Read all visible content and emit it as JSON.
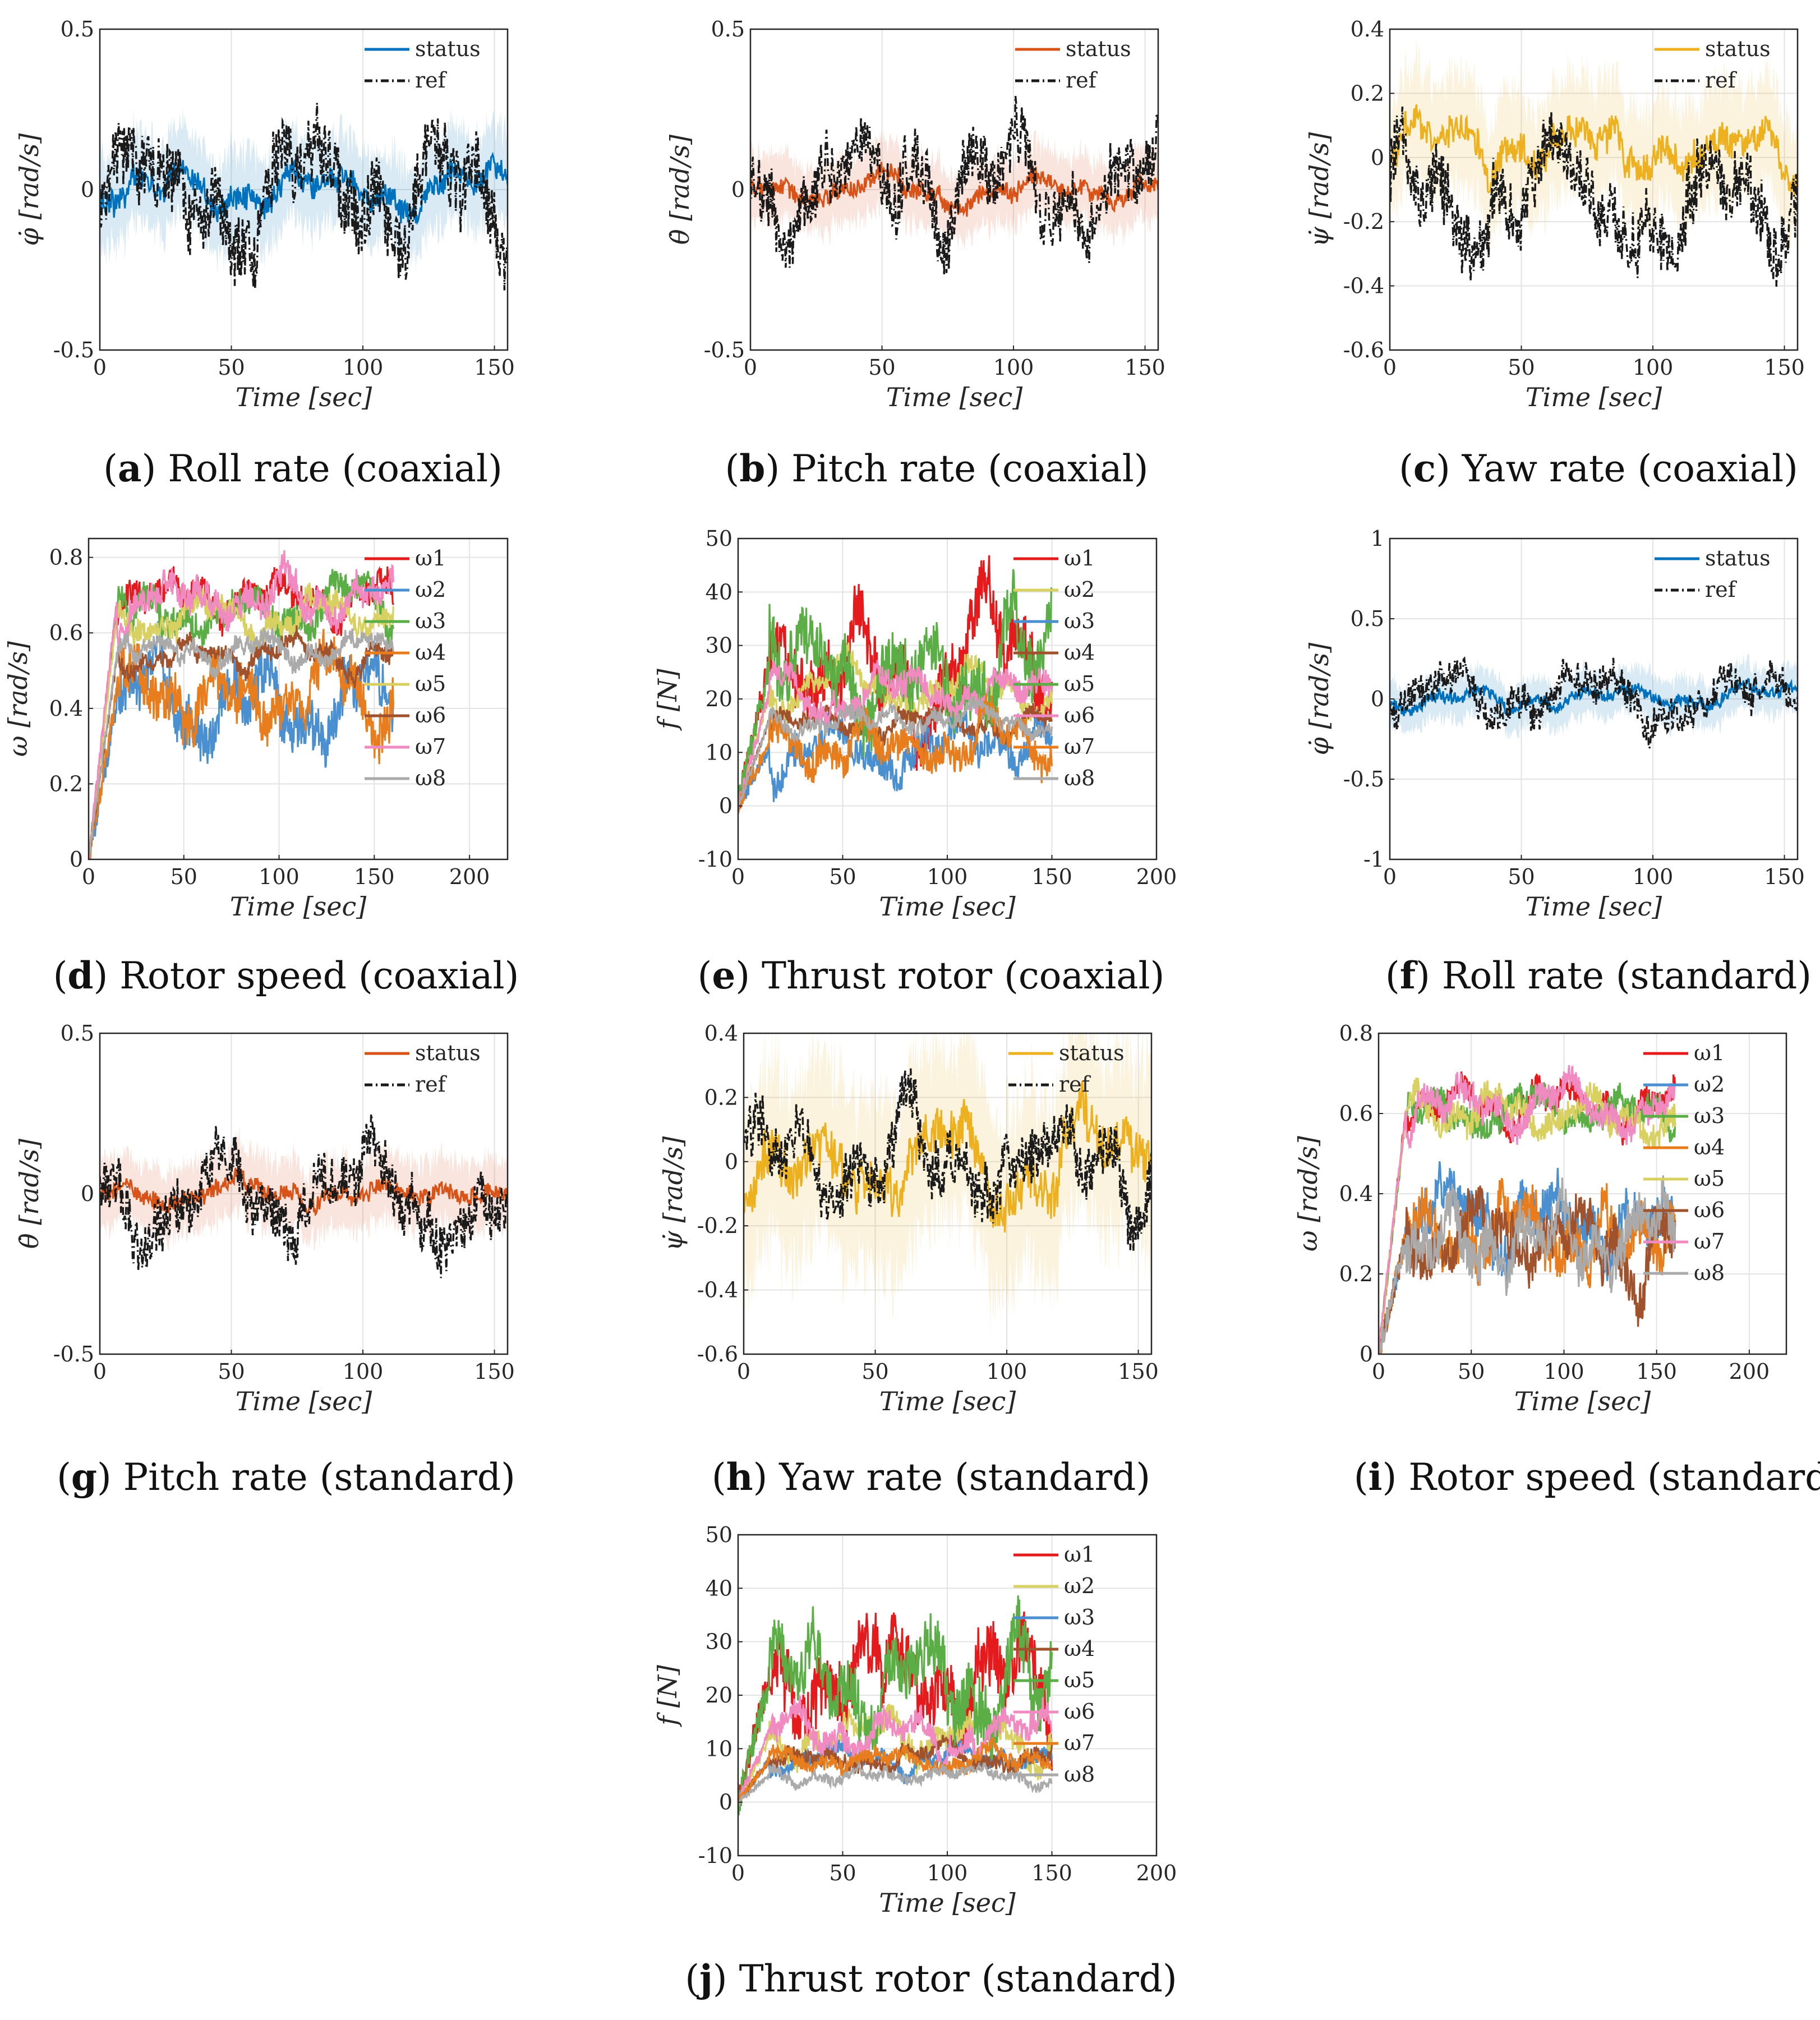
{
  "figure": {
    "captions": [
      {
        "letter": "a",
        "text": "Roll rate (coaxial)"
      },
      {
        "letter": "b",
        "text": "Pitch rate (coaxial)"
      },
      {
        "letter": "c",
        "text": "Yaw rate (coaxial)"
      },
      {
        "letter": "d",
        "text": "Rotor speed (coaxial)"
      },
      {
        "letter": "e",
        "text": "Thrust rotor (coaxial)"
      },
      {
        "letter": "f",
        "text": "Roll rate (standard)"
      },
      {
        "letter": "g",
        "text": "Pitch rate (standard)"
      },
      {
        "letter": "h",
        "text": "Yaw rate (standard)"
      },
      {
        "letter": "i",
        "text": "Rotor speed (standard)"
      },
      {
        "letter": "j",
        "text": "Thrust rotor (standard)"
      }
    ]
  },
  "chart_data": [
    {
      "id": "a",
      "type": "line",
      "xlabel": "Time [sec]",
      "ylabel": "φ̇ [rad/s]",
      "xlim": [
        0,
        155
      ],
      "ylim": [
        -0.5,
        0.5
      ],
      "xticks": [
        0,
        50,
        100,
        150
      ],
      "yticks": [
        -0.5,
        0,
        0.5
      ],
      "ytick_labels": [
        "-0.5",
        "0",
        "0.5"
      ],
      "grid": true,
      "legend_position": "top-right",
      "series": [
        {
          "name": "status",
          "color": "#0072BD",
          "style": "solid",
          "band": true,
          "mean": 0.0,
          "amplitude": 0.08,
          "seed": 11
        },
        {
          "name": "ref",
          "color": "#1a1a1a",
          "style": "dashdot",
          "mean": 0.0,
          "amplitude": 0.22,
          "seed": 12
        }
      ]
    },
    {
      "id": "b",
      "type": "line",
      "xlabel": "Time [sec]",
      "ylabel": "θ̇ [rad/s]",
      "xlim": [
        0,
        155
      ],
      "ylim": [
        -0.5,
        0.5
      ],
      "xticks": [
        0,
        50,
        100,
        150
      ],
      "yticks": [
        -0.5,
        0,
        0.5
      ],
      "ytick_labels": [
        "-0.5",
        "0",
        "0.5"
      ],
      "grid": true,
      "legend_position": "top-right",
      "series": [
        {
          "name": "status",
          "color": "#D95319",
          "style": "solid",
          "band": true,
          "mean": 0.0,
          "amplitude": 0.06,
          "seed": 21
        },
        {
          "name": "ref",
          "color": "#1a1a1a",
          "style": "dashdot",
          "mean": 0.0,
          "amplitude": 0.2,
          "seed": 22
        }
      ]
    },
    {
      "id": "c",
      "type": "line",
      "xlabel": "Time [sec]",
      "ylabel": "ψ̇ [rad/s]",
      "xlim": [
        0,
        155
      ],
      "ylim": [
        -0.6,
        0.4
      ],
      "xticks": [
        0,
        50,
        100,
        150
      ],
      "yticks": [
        -0.6,
        -0.4,
        -0.2,
        0,
        0.2,
        0.4
      ],
      "ytick_labels": [
        "-0.6",
        "-0.4",
        "-0.2",
        "0",
        "0.2",
        "0.4"
      ],
      "grid": true,
      "legend_position": "top-right",
      "series": [
        {
          "name": "status",
          "color": "#EDB120",
          "style": "solid",
          "band": true,
          "mean": 0.03,
          "amplitude": 0.1,
          "seed": 31
        },
        {
          "name": "ref",
          "color": "#1a1a1a",
          "style": "dashdot",
          "mean": -0.15,
          "amplitude": 0.22,
          "seed": 32
        }
      ]
    },
    {
      "id": "d",
      "type": "line",
      "xlabel": "Time [sec]",
      "ylabel": "ω [rad/s]",
      "xlim": [
        0,
        220
      ],
      "ylim": [
        0,
        0.85
      ],
      "xticks": [
        0,
        50,
        100,
        150,
        200
      ],
      "yticks": [
        0,
        0.2,
        0.4,
        0.6,
        0.8
      ],
      "ytick_labels": [
        "0",
        "0.2",
        "0.4",
        "0.6",
        "0.8"
      ],
      "grid": true,
      "legend_position": "top-right",
      "data_end": 160,
      "series": [
        {
          "name": "ω1",
          "color": "#e41a1c",
          "mean": 0.68,
          "amplitude": 0.08,
          "seed": 41
        },
        {
          "name": "ω2",
          "color": "#4a8fd0",
          "mean": 0.42,
          "amplitude": 0.14,
          "seed": 42
        },
        {
          "name": "ω3",
          "color": "#5aae45",
          "mean": 0.66,
          "amplitude": 0.08,
          "seed": 43
        },
        {
          "name": "ω4",
          "color": "#e87d1e",
          "mean": 0.44,
          "amplitude": 0.13,
          "seed": 44
        },
        {
          "name": "ω5",
          "color": "#d8d060",
          "mean": 0.65,
          "amplitude": 0.07,
          "seed": 45
        },
        {
          "name": "ω6",
          "color": "#a0522d",
          "mean": 0.54,
          "amplitude": 0.05,
          "seed": 46
        },
        {
          "name": "ω7",
          "color": "#f08ac0",
          "mean": 0.7,
          "amplitude": 0.08,
          "seed": 47
        },
        {
          "name": "ω8",
          "color": "#aaaaaa",
          "mean": 0.55,
          "amplitude": 0.05,
          "seed": 48
        }
      ]
    },
    {
      "id": "e",
      "type": "line",
      "xlabel": "Time [sec]",
      "ylabel": "f [N]",
      "xlim": [
        0,
        200
      ],
      "ylim": [
        -10,
        50
      ],
      "xticks": [
        0,
        50,
        100,
        150,
        200
      ],
      "yticks": [
        -10,
        0,
        10,
        20,
        30,
        40,
        50
      ],
      "ytick_labels": [
        "-10",
        "0",
        "10",
        "20",
        "30",
        "40",
        "50"
      ],
      "grid": true,
      "legend_position": "top-right",
      "data_end": 150,
      "series": [
        {
          "name": "ω1",
          "color": "#e41a1c",
          "mean": 27,
          "amplitude": 12,
          "seed": 51
        },
        {
          "name": "ω2",
          "color": "#d8d060",
          "mean": 21,
          "amplitude": 5,
          "seed": 52
        },
        {
          "name": "ω3",
          "color": "#4a8fd0",
          "mean": 11,
          "amplitude": 6,
          "seed": 53
        },
        {
          "name": "ω4",
          "color": "#a0522d",
          "mean": 16,
          "amplitude": 3,
          "seed": 54
        },
        {
          "name": "ω5",
          "color": "#5aae45",
          "mean": 26,
          "amplitude": 12,
          "seed": 55
        },
        {
          "name": "ω6",
          "color": "#f08ac0",
          "mean": 21,
          "amplitude": 5,
          "seed": 56
        },
        {
          "name": "ω7",
          "color": "#e87d1e",
          "mean": 12,
          "amplitude": 6,
          "seed": 57
        },
        {
          "name": "ω8",
          "color": "#aaaaaa",
          "mean": 16,
          "amplitude": 3,
          "seed": 58
        }
      ]
    },
    {
      "id": "f",
      "type": "line",
      "xlabel": "Time [sec]",
      "ylabel": "φ̇ [rad/s]",
      "xlim": [
        0,
        155
      ],
      "ylim": [
        -1,
        1
      ],
      "xticks": [
        0,
        50,
        100,
        150
      ],
      "yticks": [
        -1,
        -0.5,
        0,
        0.5,
        1
      ],
      "ytick_labels": [
        "-1",
        "-0.5",
        "0",
        "0.5",
        "1"
      ],
      "grid": true,
      "legend_position": "top-right",
      "series": [
        {
          "name": "status",
          "color": "#0072BD",
          "style": "solid",
          "band": true,
          "mean": 0.0,
          "amplitude": 0.08,
          "seed": 61
        },
        {
          "name": "ref",
          "color": "#1a1a1a",
          "style": "dashdot",
          "mean": 0.0,
          "amplitude": 0.22,
          "seed": 62
        }
      ]
    },
    {
      "id": "g",
      "type": "line",
      "xlabel": "Time [sec]",
      "ylabel": "θ̇ [rad/s]",
      "xlim": [
        0,
        155
      ],
      "ylim": [
        -0.5,
        0.5
      ],
      "xticks": [
        0,
        50,
        100,
        150
      ],
      "yticks": [
        -0.5,
        0,
        0.5
      ],
      "ytick_labels": [
        "-0.5",
        "0",
        "0.5"
      ],
      "grid": true,
      "legend_position": "top-right",
      "series": [
        {
          "name": "status",
          "color": "#D95319",
          "style": "solid",
          "band": true,
          "mean": 0.0,
          "amplitude": 0.06,
          "seed": 71
        },
        {
          "name": "ref",
          "color": "#1a1a1a",
          "style": "dashdot",
          "mean": 0.0,
          "amplitude": 0.18,
          "seed": 72
        }
      ]
    },
    {
      "id": "h",
      "type": "line",
      "xlabel": "Time [sec]",
      "ylabel": "ψ̇ [rad/s]",
      "xlim": [
        0,
        155
      ],
      "ylim": [
        -0.6,
        0.4
      ],
      "xticks": [
        0,
        50,
        100,
        150
      ],
      "yticks": [
        -0.6,
        -0.4,
        -0.2,
        0,
        0.2,
        0.4
      ],
      "ytick_labels": [
        "-0.6",
        "-0.4",
        "-0.2",
        "0",
        "0.2",
        "0.4"
      ],
      "grid": true,
      "legend_position": "top-right",
      "series": [
        {
          "name": "status",
          "color": "#EDB120",
          "style": "solid",
          "band": true,
          "mean": 0.0,
          "amplitude": 0.16,
          "seed": 81
        },
        {
          "name": "ref",
          "color": "#1a1a1a",
          "style": "dashdot",
          "mean": 0.0,
          "amplitude": 0.18,
          "seed": 82
        }
      ]
    },
    {
      "id": "i",
      "type": "line",
      "xlabel": "Time [sec]",
      "ylabel": "ω [rad/s]",
      "xlim": [
        0,
        220
      ],
      "ylim": [
        0,
        0.8
      ],
      "xticks": [
        0,
        50,
        100,
        150,
        200
      ],
      "yticks": [
        0,
        0.2,
        0.4,
        0.6,
        0.8
      ],
      "ytick_labels": [
        "0",
        "0.2",
        "0.4",
        "0.6",
        "0.8"
      ],
      "grid": true,
      "legend_position": "top-right",
      "data_end": 160,
      "series": [
        {
          "name": "ω1",
          "color": "#e41a1c",
          "mean": 0.62,
          "amplitude": 0.07,
          "seed": 91
        },
        {
          "name": "ω2",
          "color": "#4a8fd0",
          "mean": 0.3,
          "amplitude": 0.12,
          "seed": 92
        },
        {
          "name": "ω3",
          "color": "#5aae45",
          "mean": 0.61,
          "amplitude": 0.07,
          "seed": 93
        },
        {
          "name": "ω4",
          "color": "#e87d1e",
          "mean": 0.3,
          "amplitude": 0.12,
          "seed": 94
        },
        {
          "name": "ω5",
          "color": "#d8d060",
          "mean": 0.61,
          "amplitude": 0.07,
          "seed": 95
        },
        {
          "name": "ω6",
          "color": "#a0522d",
          "mean": 0.29,
          "amplitude": 0.12,
          "seed": 96
        },
        {
          "name": "ω7",
          "color": "#f08ac0",
          "mean": 0.62,
          "amplitude": 0.07,
          "seed": 97
        },
        {
          "name": "ω8",
          "color": "#aaaaaa",
          "mean": 0.29,
          "amplitude": 0.12,
          "seed": 98
        }
      ]
    },
    {
      "id": "j",
      "type": "line",
      "xlabel": "Time [sec]",
      "ylabel": "f [N]",
      "xlim": [
        0,
        200
      ],
      "ylim": [
        -10,
        50
      ],
      "xticks": [
        0,
        50,
        100,
        150,
        200
      ],
      "yticks": [
        -10,
        0,
        10,
        20,
        30,
        40,
        50
      ],
      "ytick_labels": [
        "-10",
        "0",
        "10",
        "20",
        "30",
        "40",
        "50"
      ],
      "grid": true,
      "legend_position": "top-right",
      "data_end": 150,
      "series": [
        {
          "name": "ω1",
          "color": "#e41a1c",
          "mean": 24,
          "amplitude": 12,
          "seed": 101
        },
        {
          "name": "ω2",
          "color": "#d8d060",
          "mean": 12,
          "amplitude": 5,
          "seed": 102
        },
        {
          "name": "ω3",
          "color": "#4a8fd0",
          "mean": 8,
          "amplitude": 3,
          "seed": 103
        },
        {
          "name": "ω4",
          "color": "#a0522d",
          "mean": 8,
          "amplitude": 3,
          "seed": 104
        },
        {
          "name": "ω5",
          "color": "#5aae45",
          "mean": 23,
          "amplitude": 12,
          "seed": 105
        },
        {
          "name": "ω6",
          "color": "#f08ac0",
          "mean": 13,
          "amplitude": 5,
          "seed": 106
        },
        {
          "name": "ω7",
          "color": "#e87d1e",
          "mean": 8,
          "amplitude": 3,
          "seed": 107
        },
        {
          "name": "ω8",
          "color": "#aaaaaa",
          "mean": 5,
          "amplitude": 2,
          "seed": 108
        }
      ]
    }
  ]
}
